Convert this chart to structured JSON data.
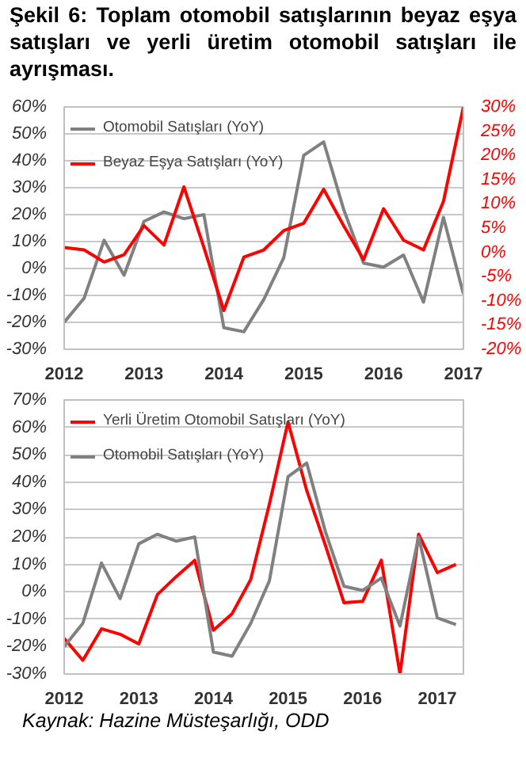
{
  "chart_data": [
    {
      "type": "line",
      "title": "Şekil 6: Toplam otomobil satışlarının beyaz eşya satışları ve yerli üretim otomobil satışları ile ayrışması.",
      "x": [
        2012,
        2012.25,
        2012.5,
        2012.75,
        2013,
        2013.25,
        2013.5,
        2013.75,
        2014,
        2014.25,
        2014.5,
        2014.75,
        2015,
        2015.25,
        2015.5,
        2015.75,
        2016,
        2016.25,
        2016.5,
        2016.75,
        2017
      ],
      "series": [
        {
          "name": "Otomobil Satışları (YoY)",
          "color": "#808080",
          "values": [
            -20,
            -11,
            10.5,
            -2.5,
            17.5,
            21,
            18.5,
            20,
            -22,
            -23.5,
            -11.5,
            4,
            42,
            47,
            22,
            2,
            0.5,
            5,
            -12.5,
            19,
            -9.5
          ]
        },
        {
          "name": "Beyaz Eşya Satışları (YoY)",
          "color": "#ff0000",
          "axis": "y2",
          "values": [
            1,
            0.5,
            -2,
            -0.5,
            5.5,
            1.5,
            13.5,
            1,
            -12,
            -1,
            0.5,
            4.5,
            6,
            13,
            5.5,
            -1.5,
            9,
            2.5,
            0.5,
            10.5,
            30
          ]
        }
      ],
      "xlim": [
        2012,
        2017
      ],
      "xticks": [
        2012,
        2013,
        2014,
        2015,
        2016,
        2017
      ],
      "ylim": [
        -30,
        60
      ],
      "yticks": [
        {
          "value": -30,
          "label": "-30%"
        },
        {
          "value": -20,
          "label": "-20%"
        },
        {
          "value": -10,
          "label": "-10%"
        },
        {
          "value": 0,
          "label": "0%"
        },
        {
          "value": 10,
          "label": "10%"
        },
        {
          "value": 20,
          "label": "20%"
        },
        {
          "value": 30,
          "label": "30%"
        },
        {
          "value": 40,
          "label": "40%"
        },
        {
          "value": 50,
          "label": "50%"
        },
        {
          "value": 60,
          "label": "60%"
        }
      ],
      "y2lim": [
        -20,
        30
      ],
      "y2ticks": [
        {
          "value": -20,
          "label": "-20%"
        },
        {
          "value": -15,
          "label": "-15%"
        },
        {
          "value": -10,
          "label": "-10%"
        },
        {
          "value": -5,
          "label": "-5%"
        },
        {
          "value": 0,
          "label": "0%"
        },
        {
          "value": 5,
          "label": "5%"
        },
        {
          "value": 10,
          "label": "10%"
        },
        {
          "value": 15,
          "label": "15%"
        },
        {
          "value": 20,
          "label": "20%"
        },
        {
          "value": 25,
          "label": "25%"
        },
        {
          "value": 30,
          "label": "30%"
        }
      ],
      "grid": "y",
      "legend": "top left"
    },
    {
      "type": "line",
      "x": [
        2012,
        2012.25,
        2012.5,
        2012.75,
        2013,
        2013.25,
        2013.5,
        2013.75,
        2014,
        2014.25,
        2014.5,
        2014.75,
        2015,
        2015.25,
        2015.5,
        2015.75,
        2016,
        2016.25,
        2016.5,
        2016.75,
        2017,
        2017.25
      ],
      "series": [
        {
          "name": "Yerli Üretim Otomobil Satışları (YoY)",
          "color": "#ff0000",
          "values": [
            -17,
            -25,
            -13.5,
            -15.5,
            -19,
            -1,
            5.5,
            11.5,
            -14,
            -8,
            4.5,
            32,
            62,
            37,
            17,
            -4,
            -3.5,
            11.5,
            -30,
            21,
            7,
            10
          ]
        },
        {
          "name": "Otomobil Satışları (YoY)",
          "color": "#808080",
          "values": [
            -20,
            -11.5,
            10.5,
            -2.5,
            17.5,
            21,
            18.5,
            20,
            -22,
            -23.5,
            -11.5,
            4,
            42,
            47,
            22,
            2,
            0.5,
            5,
            -12.5,
            20,
            -9.5,
            -12
          ]
        }
      ],
      "xlim": [
        2012,
        2017.35
      ],
      "xticks": [
        2012,
        2013,
        2014,
        2015,
        2016,
        2017
      ],
      "ylim": [
        -30,
        70
      ],
      "yticks": [
        {
          "value": -30,
          "label": "-30%"
        },
        {
          "value": -20,
          "label": "-20%"
        },
        {
          "value": -10,
          "label": "-10%"
        },
        {
          "value": 0,
          "label": "0%"
        },
        {
          "value": 10,
          "label": "10%"
        },
        {
          "value": 20,
          "label": "20%"
        },
        {
          "value": 30,
          "label": "30%"
        },
        {
          "value": 40,
          "label": "40%"
        },
        {
          "value": 50,
          "label": "50%"
        },
        {
          "value": 60,
          "label": "60%"
        },
        {
          "value": 70,
          "label": "70%"
        }
      ],
      "grid": "y",
      "legend": "top left",
      "annotations": [
        "Kaynak: Hazine Müsteşarlığı, ODD"
      ]
    }
  ]
}
